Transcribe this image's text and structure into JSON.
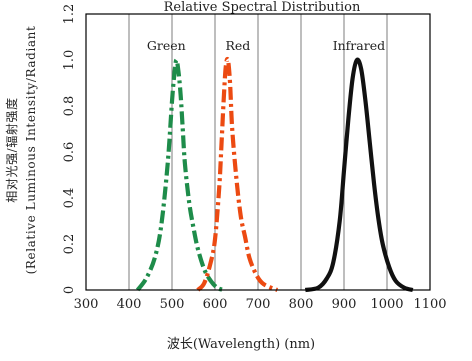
{
  "chart_data": {
    "type": "line",
    "title": "Relative Spectral Distribution",
    "xlabel": "波长(Wavelength) (nm)",
    "ylabel_line1": "相对光强/辐射强度",
    "ylabel_line2": "(Relative Luminous Intensity/Radiant",
    "xlim": [
      300,
      1100
    ],
    "ylim": [
      0,
      1.2
    ],
    "x_ticks": [
      300,
      400,
      500,
      600,
      700,
      800,
      900,
      1000,
      1100
    ],
    "y_ticks": [
      0,
      0.2,
      0.4,
      0.6,
      0.8,
      1.0,
      1.2
    ],
    "y_tick_labels": [
      "0",
      "0.2",
      "0.4",
      "0.6",
      "0.8",
      "1.0",
      "1.2"
    ],
    "grid": true,
    "series": [
      {
        "name": "Green",
        "color": "#1e8c4a",
        "style": "dash-dot",
        "x": [
          420,
          440,
          460,
          475,
          490,
          500,
          505,
          510,
          515,
          520,
          525,
          530,
          540,
          550,
          560,
          575,
          590,
          605,
          620
        ],
        "y": [
          0.0,
          0.05,
          0.14,
          0.28,
          0.55,
          0.82,
          0.93,
          1.0,
          0.95,
          0.85,
          0.7,
          0.55,
          0.38,
          0.27,
          0.18,
          0.09,
          0.04,
          0.01,
          0.0
        ]
      },
      {
        "name": "Red",
        "color": "#ec4a12",
        "style": "dash-dot",
        "x": [
          560,
          575,
          590,
          600,
          610,
          615,
          620,
          625,
          630,
          635,
          640,
          650,
          660,
          670,
          680,
          695,
          710,
          730,
          745
        ],
        "y": [
          0.0,
          0.03,
          0.12,
          0.22,
          0.45,
          0.63,
          0.82,
          0.97,
          1.0,
          0.9,
          0.7,
          0.48,
          0.32,
          0.23,
          0.14,
          0.07,
          0.03,
          0.01,
          0.0
        ]
      },
      {
        "name": "Infrared",
        "color": "#111111",
        "style": "solid",
        "x": [
          810,
          840,
          860,
          875,
          890,
          900,
          910,
          920,
          930,
          940,
          950,
          960,
          970,
          980,
          990,
          1005,
          1020,
          1040,
          1060
        ],
        "y": [
          0.0,
          0.01,
          0.05,
          0.12,
          0.3,
          0.52,
          0.74,
          0.92,
          1.0,
          0.96,
          0.82,
          0.64,
          0.46,
          0.31,
          0.2,
          0.1,
          0.04,
          0.01,
          0.0
        ]
      }
    ]
  }
}
